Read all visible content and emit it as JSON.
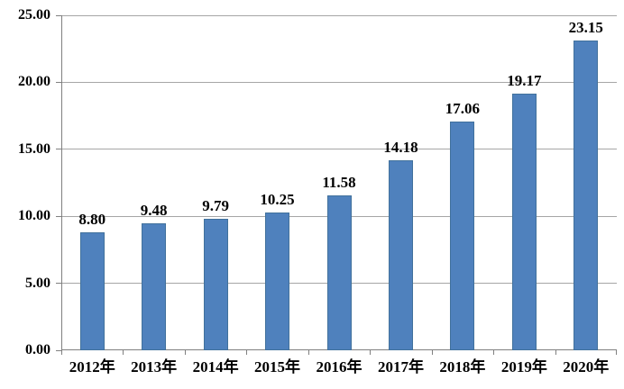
{
  "chart_data": {
    "type": "bar",
    "title": "",
    "xlabel": "",
    "ylabel": "",
    "categories": [
      "2012年",
      "2013年",
      "2014年",
      "2015年",
      "2016年",
      "2017年",
      "2018年",
      "2019年",
      "2020年"
    ],
    "values": [
      8.8,
      9.48,
      9.79,
      10.25,
      11.58,
      14.18,
      17.06,
      19.17,
      23.15
    ],
    "value_labels": [
      "8.80",
      "9.48",
      "9.79",
      "10.25",
      "11.58",
      "14.18",
      "17.06",
      "19.17",
      "23.15"
    ],
    "ylim": [
      0,
      25
    ],
    "ytick_step": 5,
    "ytick_labels": [
      "0.00",
      "5.00",
      "10.00",
      "15.00",
      "20.00",
      "25.00"
    ],
    "grid": true,
    "legend": false,
    "colors": {
      "bar_fill": "#4f81bd",
      "bar_border": "#41719c",
      "gridline": "#a6a6a6",
      "axis": "#808080",
      "text": "#000000",
      "background": "#ffffff"
    }
  }
}
